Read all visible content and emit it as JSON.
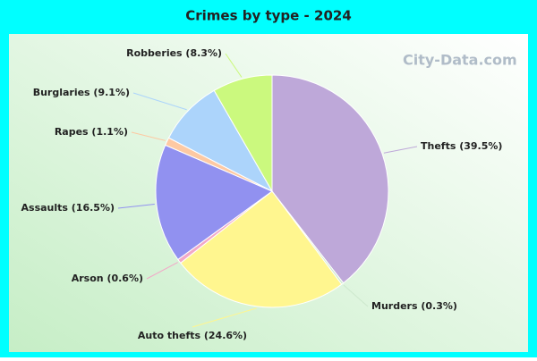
{
  "chart_data": {
    "type": "pie",
    "title": "Crimes by type - 2024",
    "watermark": "City-Data.com",
    "categories": [
      "Thefts",
      "Murders",
      "Auto thefts",
      "Arson",
      "Assaults",
      "Rapes",
      "Burglaries",
      "Robberies"
    ],
    "values": [
      39.5,
      0.3,
      24.6,
      0.6,
      16.5,
      1.1,
      9.1,
      8.3
    ],
    "value_labels": [
      "Thefts (39.5%)",
      "Murders (0.3%)",
      "Auto thefts (24.6%)",
      "Arson (0.6%)",
      "Assaults (16.5%)",
      "Rapes (1.1%)",
      "Burglaries (9.1%)",
      "Robberies (8.3%)"
    ],
    "colors": [
      "#bea8d9",
      "#cde8cd",
      "#fff68f",
      "#f2a8c8",
      "#9191f0",
      "#fdc9a3",
      "#acd4fb",
      "#cbf97e"
    ]
  }
}
